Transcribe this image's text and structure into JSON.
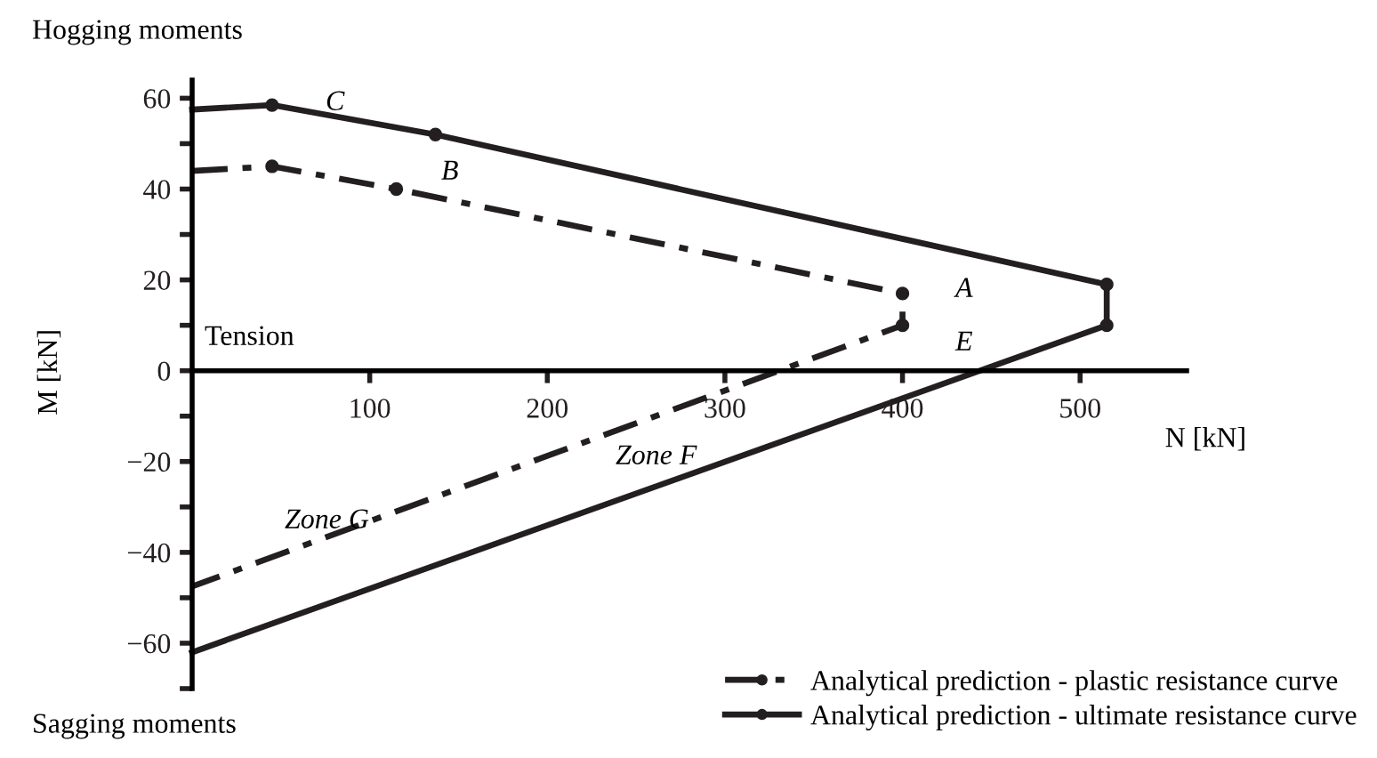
{
  "chart_data": {
    "type": "line",
    "xlabel": "N [kN]",
    "ylabel": "M [kN]",
    "series": [
      {
        "name": "Analytical prediction - plastic resistance curve",
        "color": "#231f20",
        "line_style": "dashdot",
        "x": [
          0,
          45,
          115,
          400,
          400,
          0
        ],
        "values": [
          44,
          45,
          40,
          17,
          10,
          -47.5
        ]
      },
      {
        "name": "Analytical prediction - ultimate resistance curve",
        "color": "#231f20",
        "line_style": "solid",
        "x": [
          0,
          45,
          137,
          515,
          515,
          0
        ],
        "values": [
          57.5,
          58.5,
          52,
          19,
          10,
          -62
        ]
      }
    ],
    "marker": "circle",
    "legend": "bottom right",
    "grid": false,
    "xlim": [
      0,
      560
    ],
    "ylim": [
      -70,
      64
    ],
    "xticks": [
      100,
      200,
      300,
      400,
      500
    ],
    "yticks": [
      {
        "value": -70,
        "label": null
      },
      -60,
      {
        "value": -50,
        "label": null
      },
      -40,
      {
        "value": -30,
        "label": null
      },
      -20,
      {
        "value": -10,
        "label": null
      },
      0,
      {
        "value": 10,
        "label": null
      },
      20,
      {
        "value": 30,
        "label": null
      },
      40,
      {
        "value": 50,
        "label": null
      },
      60
    ],
    "annotations": [
      "Hogging moments",
      "Sagging moments",
      "Tension",
      "A",
      "E",
      "B",
      "C",
      "Zone F",
      "Zone G"
    ]
  }
}
